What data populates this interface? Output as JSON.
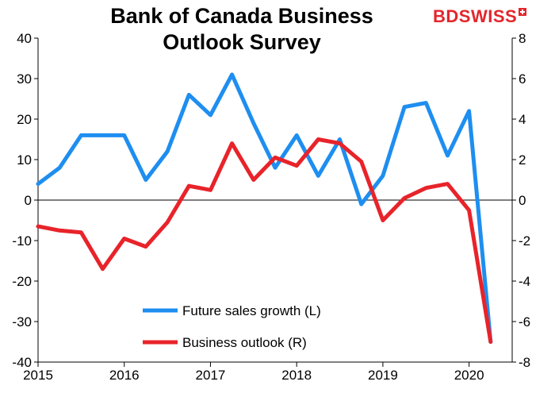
{
  "title": "Bank of Canada Business Outlook Survey",
  "logo": {
    "text": "BDSWISS",
    "icon": "swiss-flag-icon"
  },
  "chart_data": {
    "type": "line",
    "title": "Bank of Canada Business Outlook Survey",
    "x": [
      2015.0,
      2015.25,
      2015.5,
      2015.75,
      2016.0,
      2016.25,
      2016.5,
      2016.75,
      2017.0,
      2017.25,
      2017.5,
      2017.75,
      2018.0,
      2018.25,
      2018.5,
      2018.75,
      2019.0,
      2019.25,
      2019.5,
      2019.75,
      2020.0,
      2020.25
    ],
    "x_ticks": [
      "2015",
      "2016",
      "2017",
      "2018",
      "2019",
      "2020"
    ],
    "xlim": [
      2015.0,
      2020.5
    ],
    "left_axis": {
      "ylim": [
        -40,
        40
      ],
      "ticks": [
        "-40",
        "-30",
        "-20",
        "-10",
        "0",
        "10",
        "20",
        "30",
        "40"
      ]
    },
    "right_axis": {
      "ylim": [
        -8,
        8
      ],
      "ticks": [
        "-8",
        "-6",
        "-4",
        "-2",
        "0",
        "2",
        "4",
        "6",
        "8"
      ]
    },
    "series": [
      {
        "name": "Future sales growth (L)",
        "axis": "left",
        "color": "#1e8ef0",
        "values": [
          4,
          8,
          16,
          16,
          16,
          5,
          12,
          26,
          21,
          31,
          19,
          8,
          16,
          6,
          15,
          -1,
          6,
          23,
          24,
          11,
          22,
          -35
        ]
      },
      {
        "name": "Business outlook (R)",
        "axis": "right",
        "color": "#e8232a",
        "values": [
          -1.3,
          -1.5,
          -1.6,
          -3.4,
          -1.9,
          -2.3,
          -1.1,
          0.7,
          0.5,
          2.8,
          1.0,
          2.1,
          1.7,
          3.0,
          2.8,
          1.9,
          -1.0,
          0.1,
          0.6,
          0.8,
          -0.5,
          -7.0
        ]
      }
    ],
    "legend": {
      "position": "bottom-center"
    },
    "grid": false
  }
}
